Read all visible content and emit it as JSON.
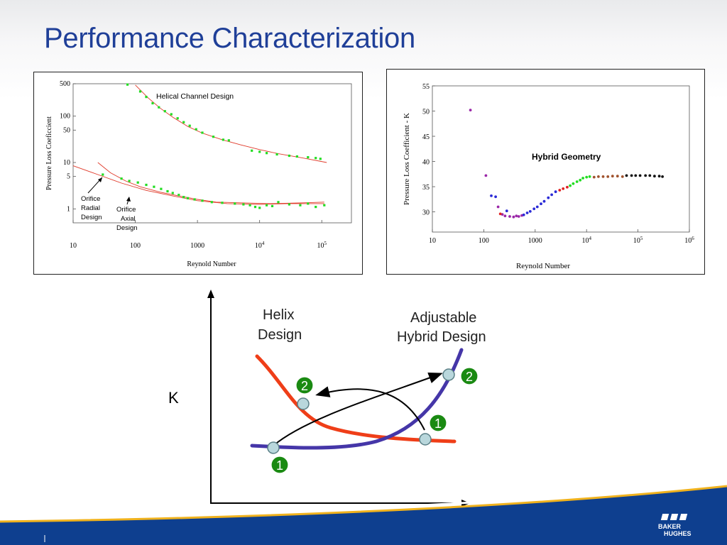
{
  "slide": {
    "title": "Performance Characterization"
  },
  "chart_data": [
    {
      "type": "scatter",
      "xscale": "log",
      "yscale": "log",
      "xlim": [
        10,
        300000
      ],
      "ylim": [
        0.5,
        500
      ],
      "xlabel": "Reynold  Number",
      "ylabel": "Pressure  Loss Coeficcient",
      "x_ticks": [
        "10",
        "100",
        "1000",
        "10^4",
        "10^5"
      ],
      "x_tick_values": [
        10,
        100,
        1000,
        10000,
        100000
      ],
      "y_ticks": [
        "500",
        "100",
        "50",
        "10",
        "5",
        "1"
      ],
      "y_tick_values": [
        500,
        100,
        50,
        10,
        5,
        1
      ],
      "annotations": {
        "helical": "Helical Channel Design",
        "orifice_radial": [
          "Orifice",
          "Radial",
          "Design"
        ],
        "orifice_axial": [
          "Orifice",
          "Axial",
          "Design"
        ]
      },
      "marker_color": "#22dd22",
      "curve_color": "#e03a2a",
      "series": [
        {
          "label": "helical measured",
          "points": [
            [
              75,
              480
            ],
            [
              120,
              340
            ],
            [
              150,
              260
            ],
            [
              190,
              190
            ],
            [
              240,
              155
            ],
            [
              300,
              128
            ],
            [
              380,
              110
            ],
            [
              480,
              90
            ],
            [
              600,
              74
            ],
            [
              750,
              62
            ],
            [
              950,
              52
            ],
            [
              1200,
              44
            ],
            [
              1800,
              36
            ],
            [
              2600,
              31
            ],
            [
              3200,
              30
            ],
            [
              7500,
              18
            ],
            [
              10000,
              17
            ],
            [
              13000,
              16
            ],
            [
              19000,
              15
            ],
            [
              30000,
              14
            ],
            [
              40000,
              13.5
            ],
            [
              60000,
              13
            ],
            [
              80000,
              12.5
            ],
            [
              95000,
              12
            ]
          ]
        },
        {
          "label": "helical fit",
          "points": [
            [
              100,
              470
            ],
            [
              160,
              250
            ],
            [
              250,
              150
            ],
            [
              400,
              95
            ],
            [
              700,
              60
            ],
            [
              1200,
              43
            ],
            [
              2500,
              31
            ],
            [
              5000,
              24
            ],
            [
              10000,
              19
            ],
            [
              20000,
              15.5
            ],
            [
              50000,
              12.5
            ],
            [
              120000,
              10
            ]
          ]
        },
        {
          "label": "orifice measured",
          "points": [
            [
              30,
              5.5
            ],
            [
              60,
              4.5
            ],
            [
              80,
              4
            ],
            [
              110,
              3.7
            ],
            [
              150,
              3.3
            ],
            [
              200,
              3
            ],
            [
              260,
              2.7
            ],
            [
              330,
              2.4
            ],
            [
              400,
              2.2
            ],
            [
              500,
              2
            ],
            [
              600,
              1.8
            ],
            [
              700,
              1.7
            ],
            [
              900,
              1.6
            ],
            [
              1200,
              1.5
            ],
            [
              1700,
              1.4
            ],
            [
              2500,
              1.35
            ],
            [
              4000,
              1.3
            ],
            [
              5500,
              1.25
            ],
            [
              7000,
              1.2
            ],
            [
              8500,
              1.1
            ],
            [
              10000,
              1.05
            ],
            [
              13000,
              1.2
            ],
            [
              16000,
              1.15
            ],
            [
              20000,
              1.4
            ],
            [
              30000,
              1.25
            ],
            [
              45000,
              1.2
            ],
            [
              60000,
              1.3
            ],
            [
              80000,
              1.1
            ],
            [
              110000,
              1.2
            ]
          ]
        },
        {
          "label": "orifice radial fit",
          "points": [
            [
              25,
              10
            ],
            [
              40,
              6
            ],
            [
              70,
              4
            ],
            [
              120,
              3
            ],
            [
              250,
              2.3
            ],
            [
              500,
              1.9
            ],
            [
              1000,
              1.6
            ],
            [
              2000,
              1.4
            ],
            [
              5000,
              1.35
            ],
            [
              15000,
              1.3
            ],
            [
              50000,
              1.35
            ],
            [
              110000,
              1.4
            ]
          ]
        },
        {
          "label": "orifice axial fit",
          "points": [
            [
              10,
              8.5
            ],
            [
              25,
              5.5
            ],
            [
              60,
              3.6
            ],
            [
              150,
              2.5
            ],
            [
              400,
              1.9
            ],
            [
              1000,
              1.5
            ],
            [
              3000,
              1.3
            ],
            [
              10000,
              1.25
            ],
            [
              30000,
              1.3
            ],
            [
              110000,
              1.3
            ]
          ]
        }
      ]
    },
    {
      "type": "scatter",
      "xscale": "log",
      "yscale": "linear",
      "xlim": [
        10,
        1000000
      ],
      "ylim": [
        26,
        55
      ],
      "xlabel": "Reynold  Number",
      "ylabel": "Pressure  Loss Coefficient - K",
      "x_ticks": [
        "10",
        "100",
        "1000",
        "10^4",
        "10^5",
        "10^6"
      ],
      "x_tick_values": [
        10,
        100,
        1000,
        10000,
        100000,
        1000000
      ],
      "y_ticks": [
        "55",
        "50",
        "45",
        "40",
        "35",
        "30"
      ],
      "y_tick_values": [
        55,
        50,
        45,
        40,
        35,
        30
      ],
      "annotation": "Hybrid Geometry",
      "series": [
        {
          "color": "#9b27a8",
          "points": [
            [
              55,
              50.2
            ],
            [
              110,
              37.2
            ],
            [
              190,
              31
            ],
            [
              230,
              29.5
            ],
            [
              260,
              29.2
            ],
            [
              320,
              29.1
            ],
            [
              380,
              29
            ],
            [
              430,
              29.2
            ],
            [
              480,
              29.1
            ],
            [
              550,
              29.3
            ]
          ]
        },
        {
          "color": "#2a2ad6",
          "points": [
            [
              140,
              33.2
            ],
            [
              170,
              33
            ],
            [
              280,
              30.2
            ],
            [
              600,
              29.4
            ],
            [
              700,
              29.8
            ],
            [
              800,
              30.1
            ],
            [
              950,
              30.6
            ],
            [
              1100,
              31
            ],
            [
              1300,
              31.6
            ],
            [
              1500,
              32.1
            ],
            [
              1800,
              32.8
            ],
            [
              2100,
              33.4
            ],
            [
              2500,
              34
            ]
          ]
        },
        {
          "color": "#e02222",
          "points": [
            [
              210,
              29.6
            ],
            [
              3000,
              34.3
            ],
            [
              3500,
              34.6
            ],
            [
              4200,
              34.9
            ]
          ]
        },
        {
          "color": "#22dd22",
          "points": [
            [
              4800,
              35.2
            ],
            [
              5500,
              35.6
            ],
            [
              6500,
              36
            ],
            [
              7500,
              36.3
            ],
            [
              8500,
              36.7
            ],
            [
              10000,
              36.9
            ],
            [
              11500,
              37
            ]
          ]
        },
        {
          "color": "#a0522d",
          "points": [
            [
              14000,
              36.9
            ],
            [
              17000,
              37
            ],
            [
              21000,
              37
            ],
            [
              26000,
              37
            ],
            [
              32000,
              37.1
            ],
            [
              40000,
              37.1
            ],
            [
              50000,
              37
            ]
          ]
        },
        {
          "color": "#111111",
          "points": [
            [
              60000,
              37.2
            ],
            [
              75000,
              37.2
            ],
            [
              90000,
              37.2
            ],
            [
              110000,
              37.2
            ],
            [
              140000,
              37.2
            ],
            [
              170000,
              37.2
            ],
            [
              210000,
              37.1
            ],
            [
              260000,
              37.1
            ],
            [
              300000,
              37
            ]
          ]
        }
      ]
    }
  ],
  "diagram": {
    "axis_label": "K",
    "helix_label": [
      "Helix",
      "Design"
    ],
    "hybrid_label": [
      "Adjustable",
      "Hybrid Design"
    ],
    "markers": [
      "2",
      "1",
      "2",
      "1"
    ],
    "colors": {
      "helix": "#ef3e18",
      "hybrid": "#4536a8",
      "marker_fill": "#1a8a12",
      "marker_text": "#ffffff",
      "node_fill": "#b9d7dc"
    }
  },
  "branding": {
    "logo_lines": [
      "BAKER",
      "HUGHES"
    ]
  }
}
